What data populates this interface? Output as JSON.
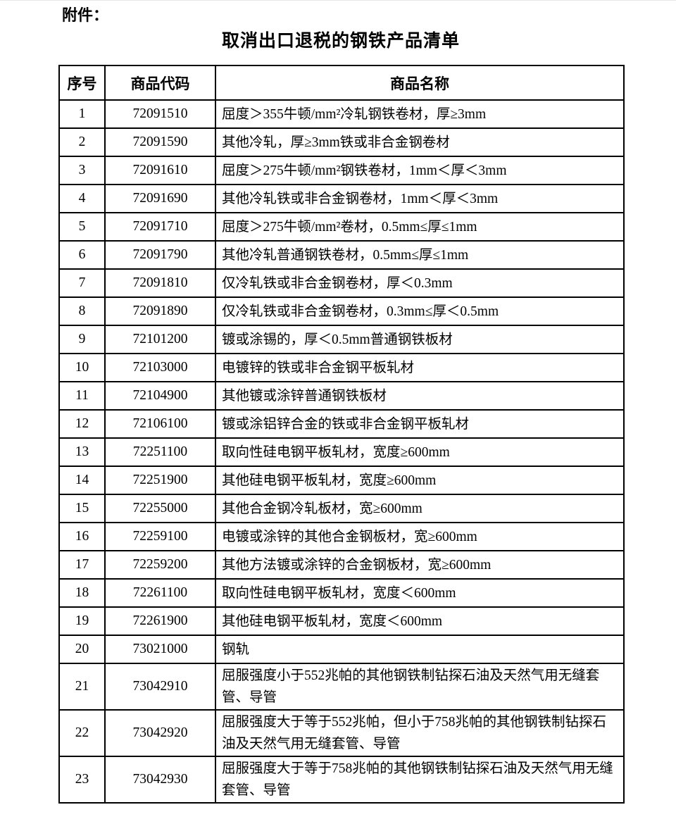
{
  "page": {
    "attachment_label": "附件：",
    "title": "取消出口退税的钢铁产品清单"
  },
  "table": {
    "headers": [
      "序号",
      "商品代码",
      "商品名称"
    ],
    "rows": [
      {
        "no": "1",
        "code": "72091510",
        "name": "屈度＞355牛顿/mm²冷轧钢铁卷材，厚≥3mm"
      },
      {
        "no": "2",
        "code": "72091590",
        "name": "其他冷轧，厚≥3mm铁或非合金钢卷材"
      },
      {
        "no": "3",
        "code": "72091610",
        "name": "屈度＞275牛顿/mm²钢铁卷材，1mm＜厚＜3mm"
      },
      {
        "no": "4",
        "code": "72091690",
        "name": "其他冷轧铁或非合金钢卷材，1mm＜厚＜3mm"
      },
      {
        "no": "5",
        "code": "72091710",
        "name": "屈度＞275牛顿/mm²卷材，0.5mm≤厚≤1mm"
      },
      {
        "no": "6",
        "code": "72091790",
        "name": "其他冷轧普通钢铁卷材，0.5mm≤厚≤1mm"
      },
      {
        "no": "7",
        "code": "72091810",
        "name": "仅冷轧铁或非合金钢卷材，厚＜0.3mm"
      },
      {
        "no": "8",
        "code": "72091890",
        "name": "仅冷轧铁或非合金钢卷材，0.3mm≤厚＜0.5mm"
      },
      {
        "no": "9",
        "code": "72101200",
        "name": "镀或涂锡的，厚＜0.5mm普通钢铁板材"
      },
      {
        "no": "10",
        "code": "72103000",
        "name": "电镀锌的铁或非合金钢平板轧材"
      },
      {
        "no": "11",
        "code": "72104900",
        "name": "其他镀或涂锌普通钢铁板材"
      },
      {
        "no": "12",
        "code": "72106100",
        "name": "镀或涂铝锌合金的铁或非合金钢平板轧材"
      },
      {
        "no": "13",
        "code": "72251100",
        "name": "取向性硅电钢平板轧材，宽度≥600mm"
      },
      {
        "no": "14",
        "code": "72251900",
        "name": "其他硅电钢平板轧材，宽度≥600mm"
      },
      {
        "no": "15",
        "code": "72255000",
        "name": "其他合金钢冷轧板材，宽≥600mm"
      },
      {
        "no": "16",
        "code": "72259100",
        "name": "电镀或涂锌的其他合金钢板材，宽≥600mm"
      },
      {
        "no": "17",
        "code": "72259200",
        "name": "其他方法镀或涂锌的合金钢板材，宽≥600mm"
      },
      {
        "no": "18",
        "code": "72261100",
        "name": "取向性硅电钢平板轧材，宽度＜600mm"
      },
      {
        "no": "19",
        "code": "72261900",
        "name": "其他硅电钢平板轧材，宽度＜600mm"
      },
      {
        "no": "20",
        "code": "73021000",
        "name": "钢轨"
      },
      {
        "no": "21",
        "code": "73042910",
        "name": "屈服强度小于552兆帕的其他钢铁制钻探石油及天然气用无缝套管、导管"
      },
      {
        "no": "22",
        "code": "73042920",
        "name": "屈服强度大于等于552兆帕，但小于758兆帕的其他钢铁制钻探石油及天然气用无缝套管、导管"
      },
      {
        "no": "23",
        "code": "73042930",
        "name": "屈服强度大于等于758兆帕的其他钢铁制钻探石油及天然气用无缝套管、导管"
      }
    ]
  }
}
